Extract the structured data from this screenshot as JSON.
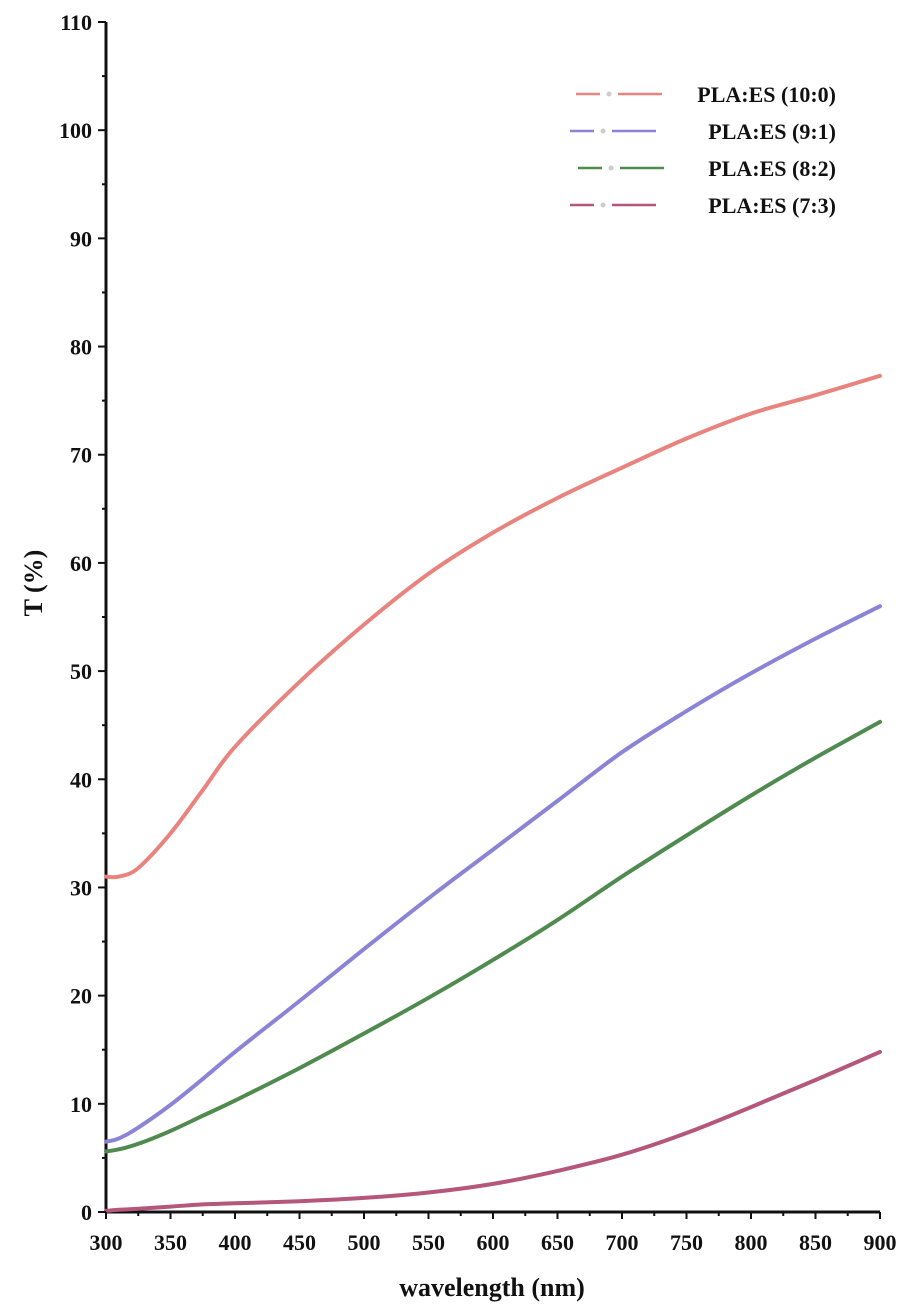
{
  "chart_data": {
    "type": "line",
    "xlabel": "wavelength  (nm)",
    "ylabel": "T (%)",
    "xlim": [
      300,
      900
    ],
    "ylim": [
      0,
      110
    ],
    "x_ticks": [
      "300",
      "350",
      "400",
      "450",
      "500",
      "550",
      "600",
      "650",
      "700",
      "750",
      "800",
      "850",
      "900"
    ],
    "y_ticks": [
      "0",
      "10",
      "20",
      "30",
      "40",
      "50",
      "60",
      "70",
      "80",
      "90",
      "100",
      "110"
    ],
    "legend_position": "top-right",
    "x": [
      300,
      310,
      325,
      350,
      375,
      400,
      450,
      500,
      550,
      600,
      650,
      700,
      750,
      800,
      850,
      900
    ],
    "series": [
      {
        "name": "PLA:ES (10:0)",
        "color": "#e8837e",
        "values": [
          31,
          31,
          31.8,
          35,
          39,
          43,
          49,
          54.3,
          59,
          62.8,
          66,
          68.8,
          71.5,
          73.8,
          75.5,
          77.3
        ]
      },
      {
        "name": "PLA:ES (9:1)",
        "color": "#8b84d6",
        "values": [
          6.5,
          6.8,
          7.8,
          9.9,
          12.3,
          14.8,
          19.5,
          24.3,
          29,
          33.5,
          38,
          42.5,
          46.3,
          49.8,
          53,
          56
        ]
      },
      {
        "name": "PLA:ES (8:2)",
        "color": "#4f8a4f",
        "values": [
          5.6,
          5.8,
          6.3,
          7.5,
          8.9,
          10.3,
          13.3,
          16.5,
          19.8,
          23.3,
          27,
          31,
          34.8,
          38.5,
          42,
          45.3
        ]
      },
      {
        "name": "PLA:ES (7:3)",
        "color": "#b5577a",
        "values": [
          0.1,
          0.2,
          0.3,
          0.5,
          0.7,
          0.8,
          1,
          1.3,
          1.8,
          2.6,
          3.8,
          5.3,
          7.3,
          9.7,
          12.2,
          14.8
        ]
      }
    ]
  }
}
